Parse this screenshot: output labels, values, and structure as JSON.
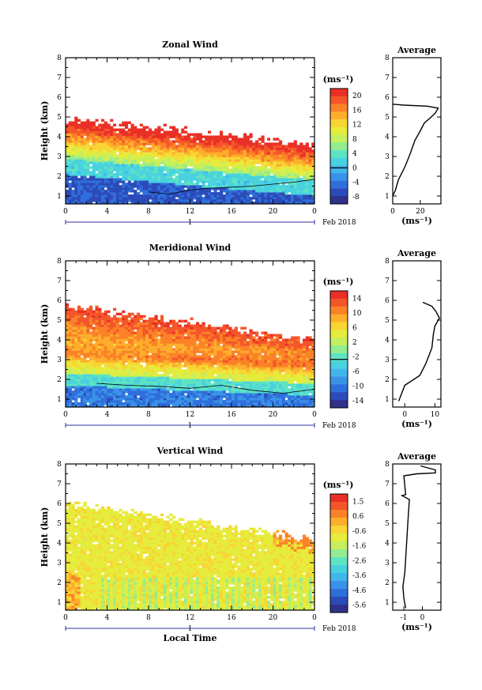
{
  "chart_data": [
    {
      "type": "heatmap",
      "title": "Zonal Wind",
      "xlabel": "",
      "ylabel": "Height (km)",
      "x_ticks": [
        "0",
        "4",
        "8",
        "12",
        "16",
        "20",
        "0"
      ],
      "x_range": [
        0,
        24
      ],
      "y_ticks": [
        "1",
        "2",
        "3",
        "4",
        "5",
        "6",
        "7",
        "8"
      ],
      "y_range": [
        0.6,
        8.0
      ],
      "date_axis": {
        "day_label": "1",
        "month_label": "Feb 2018"
      },
      "colorbar": {
        "unit": "(ms⁻¹)",
        "ticks": [
          "20",
          "16",
          "12",
          "8",
          "4",
          "0",
          "-4",
          "-8"
        ],
        "range": [
          -10,
          22
        ]
      },
      "average": {
        "title": "Average",
        "xlabel": "(ms⁻¹)",
        "x_ticks": [
          "0",
          "20"
        ],
        "x_range": [
          0,
          35
        ],
        "profile": [
          [
            1.0,
            0
          ],
          [
            1.3,
            2
          ],
          [
            1.8,
            4
          ],
          [
            2.5,
            9
          ],
          [
            3.2,
            13
          ],
          [
            3.8,
            16
          ],
          [
            4.3,
            20
          ],
          [
            4.7,
            23
          ],
          [
            5.0,
            28
          ],
          [
            5.2,
            31
          ],
          [
            5.45,
            33
          ],
          [
            5.55,
            25
          ],
          [
            5.6,
            8
          ],
          [
            5.65,
            0
          ]
        ]
      }
    },
    {
      "type": "heatmap",
      "title": "Meridional Wind",
      "xlabel": "",
      "ylabel": "Height (km)",
      "x_ticks": [
        "0",
        "4",
        "8",
        "12",
        "16",
        "20",
        "0"
      ],
      "x_range": [
        0,
        24
      ],
      "y_ticks": [
        "1",
        "2",
        "3",
        "4",
        "5",
        "6",
        "7",
        "8"
      ],
      "y_range": [
        0.6,
        8.0
      ],
      "date_axis": {
        "day_label": "1",
        "month_label": "Feb 2018"
      },
      "colorbar": {
        "unit": "(ms⁻¹)",
        "ticks": [
          "14",
          "10",
          "6",
          "2",
          "-2",
          "-6",
          "-10",
          "-14"
        ],
        "range": [
          -16,
          16
        ]
      },
      "average": {
        "title": "Average",
        "xlabel": "(ms⁻¹)",
        "x_ticks": [
          "0",
          "10"
        ],
        "x_range": [
          -4,
          12
        ],
        "profile": [
          [
            0.9,
            -2
          ],
          [
            1.3,
            -1
          ],
          [
            1.7,
            0
          ],
          [
            2.2,
            5
          ],
          [
            2.8,
            7
          ],
          [
            3.2,
            8
          ],
          [
            3.6,
            9
          ],
          [
            4.0,
            9.3
          ],
          [
            4.3,
            9.5
          ],
          [
            4.7,
            10
          ],
          [
            5.1,
            11.5
          ],
          [
            5.4,
            10.5
          ],
          [
            5.7,
            9
          ],
          [
            5.9,
            6
          ]
        ]
      }
    },
    {
      "type": "heatmap",
      "title": "Vertical Wind",
      "xlabel": "Local Time",
      "ylabel": "Height (km)",
      "x_ticks": [
        "0",
        "4",
        "8",
        "12",
        "16",
        "20",
        "0"
      ],
      "x_range": [
        0,
        24
      ],
      "y_ticks": [
        "1",
        "2",
        "3",
        "4",
        "5",
        "6",
        "7",
        "8"
      ],
      "y_range": [
        0.6,
        8.0
      ],
      "date_axis": {
        "day_label": "1",
        "month_label": "Feb 2018"
      },
      "colorbar": {
        "unit": "(ms⁻¹)",
        "ticks": [
          "1.5",
          "0.6",
          "-0.6",
          "-1.6",
          "-2.6",
          "-3.6",
          "-4.6",
          "-5.6"
        ],
        "range": [
          -6.0,
          2.0
        ]
      },
      "average": {
        "title": "Average",
        "xlabel": "(ms⁻¹)",
        "x_ticks": [
          "-1",
          "0"
        ],
        "x_range": [
          -1.6,
          1.0
        ],
        "profile": [
          [
            0.7,
            -0.9
          ],
          [
            1.2,
            -1.0
          ],
          [
            1.8,
            -1.05
          ],
          [
            2.5,
            -0.95
          ],
          [
            3.2,
            -0.9
          ],
          [
            4.0,
            -0.85
          ],
          [
            4.8,
            -0.8
          ],
          [
            5.5,
            -0.75
          ],
          [
            6.2,
            -0.7
          ],
          [
            6.4,
            -1.1
          ],
          [
            6.45,
            -0.9
          ],
          [
            7.4,
            -1.0
          ],
          [
            7.5,
            -0.3
          ],
          [
            7.55,
            0.7
          ],
          [
            7.7,
            0.7
          ],
          [
            7.9,
            -0.1
          ]
        ]
      }
    }
  ]
}
